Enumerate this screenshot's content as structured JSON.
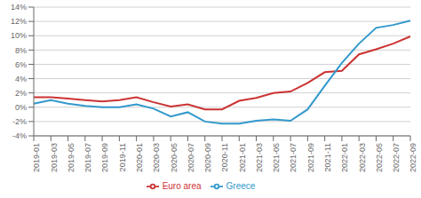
{
  "chart_data": {
    "type": "line",
    "categories": [
      "2019-01",
      "2019-03",
      "2019-05",
      "2019-07",
      "2019-09",
      "2019-11",
      "2020-01",
      "2020-03",
      "2020-05",
      "2020-07",
      "2020-09",
      "2020-11",
      "2021-01",
      "2021-03",
      "2021-05",
      "2021-07",
      "2021-09",
      "2021-11",
      "2022-01",
      "2022-03",
      "2022-05",
      "2022-07",
      "2022-09"
    ],
    "series": [
      {
        "name": "Euro area",
        "color": "#cc3333",
        "values": [
          1.4,
          1.4,
          1.2,
          1.0,
          0.8,
          1.0,
          1.4,
          0.7,
          0.1,
          0.4,
          -0.3,
          -0.3,
          0.9,
          1.3,
          2.0,
          2.2,
          3.4,
          4.9,
          5.1,
          7.4,
          8.1,
          8.9,
          9.9
        ]
      },
      {
        "name": "Greece",
        "color": "#3399cc",
        "values": [
          0.5,
          1.0,
          0.5,
          0.2,
          0.0,
          0.0,
          0.4,
          -0.2,
          -1.3,
          -0.7,
          -2.0,
          -2.3,
          -2.3,
          -1.9,
          -1.7,
          -1.9,
          -0.3,
          3.0,
          6.2,
          8.9,
          11.1,
          11.5,
          12.1
        ]
      }
    ],
    "ylim": [
      -4,
      14
    ],
    "yticks": [
      {
        "value": -4,
        "label": "-4%"
      },
      {
        "value": -2,
        "label": "-2%"
      },
      {
        "value": 0,
        "label": "0%"
      },
      {
        "value": 2,
        "label": "2%"
      },
      {
        "value": 4,
        "label": "4%"
      },
      {
        "value": 6,
        "label": "6%"
      },
      {
        "value": 8,
        "label": "8%"
      },
      {
        "value": 10,
        "label": "10%"
      },
      {
        "value": 12,
        "label": "12%"
      },
      {
        "value": 14,
        "label": "14%"
      }
    ],
    "grid": true,
    "legend": "bottom"
  }
}
